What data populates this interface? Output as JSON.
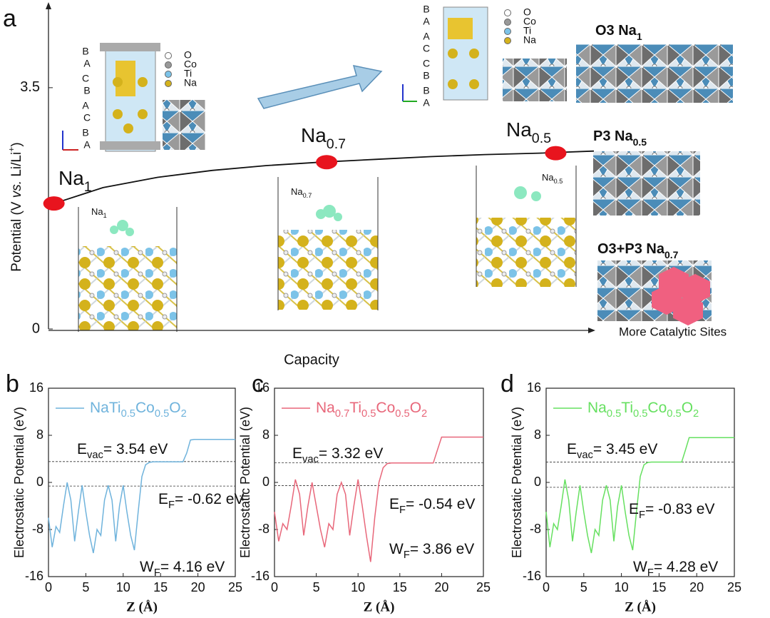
{
  "panel_labels": [
    "a",
    "b",
    "c",
    "d"
  ],
  "atom_legend": [
    "O",
    "Co",
    "Ti",
    "Na"
  ],
  "stacking_left": [
    "B",
    "A",
    "C",
    "B",
    "A",
    "C",
    "B",
    "A"
  ],
  "stacking_right": [
    "B",
    "A",
    "A",
    "C",
    "C",
    "B",
    "B",
    "A"
  ],
  "slab_labels": [
    "Na1",
    "Na0.7",
    "Na0.5"
  ],
  "structures": [
    {
      "prefix": "O3 Na",
      "sub": "1"
    },
    {
      "prefix": "P3 Na",
      "sub": "0.5"
    },
    {
      "prefix": "O3+P3 Na",
      "sub": "0.7"
    }
  ],
  "structure_note": "More Catalytic Sites",
  "chart_data": [
    {
      "type": "line",
      "xlabel": "Capacity",
      "ylabel": [
        "Potential (V ",
        "vs.",
        " Li/Li",
        "+",
        ")"
      ],
      "xlim": [
        0,
        1
      ],
      "ylim": [
        0,
        4.72
      ],
      "yticks": [
        0,
        3.5
      ],
      "color": "#111111",
      "x": [
        0.01,
        0.1,
        0.2,
        0.3,
        0.4,
        0.5,
        0.6,
        0.7,
        0.8,
        0.9,
        1.0
      ],
      "values": [
        1.82,
        2.05,
        2.2,
        2.3,
        2.37,
        2.42,
        2.46,
        2.5,
        2.53,
        2.55,
        2.58
      ],
      "points": {
        "labels": [
          "Na1",
          "Na0.7",
          "Na0.5"
        ],
        "x": [
          0.01,
          0.51,
          0.93
        ],
        "values": [
          1.82,
          2.42,
          2.55
        ],
        "color": "#e8141e"
      }
    },
    {
      "type": "line",
      "xlabel": "Z (Å)",
      "ylabel": "Electrostatic Potential (eV)",
      "xlim": [
        0,
        25
      ],
      "ylim": [
        -16,
        16
      ],
      "xticks": [
        0,
        5,
        10,
        15,
        20,
        25
      ],
      "yticks": [
        -16,
        -8,
        0,
        8,
        16
      ],
      "x": [
        0,
        0.5,
        1,
        1.5,
        2,
        2.5,
        3,
        3.5,
        4,
        4.5,
        5,
        5.5,
        6,
        6.5,
        7,
        7.5,
        8,
        8.5,
        9,
        9.5,
        10,
        10.5,
        11,
        11.5,
        12,
        12.5,
        13,
        13.5,
        14,
        14.5,
        15,
        15.5,
        16,
        16.5,
        17,
        17.5,
        18,
        18.5,
        19,
        19.5,
        20,
        20.5,
        21,
        21.5,
        22,
        22.5,
        23,
        23.5,
        24,
        24.5,
        25
      ],
      "series": [
        {
          "name": "NaTi0.5Co0.5O2",
          "color": "#6fb3dc",
          "values": [
            -6,
            -11,
            -7.5,
            -8.5,
            -4,
            0,
            -3,
            -10,
            -5,
            -0.5,
            -5,
            -9,
            -12,
            -8,
            -9,
            -3,
            -0.5,
            -3,
            -10,
            -4,
            -0.5,
            -5,
            -9,
            -11.5,
            -5,
            1,
            3,
            3.4,
            3.5,
            3.5,
            3.5,
            3.5,
            3.5,
            3.5,
            3.5,
            3.5,
            3.5,
            5,
            7.2,
            7.3,
            7.3,
            7.3,
            7.3,
            7.3,
            7.3,
            7.3,
            7.3,
            7.3,
            7.3,
            7.3,
            7.3
          ]
        }
      ],
      "levels": [
        3.54,
        -0.62
      ],
      "annotations": [
        {
          "symbol": "E",
          "sub": "vac",
          "after": "= 3.54 eV"
        },
        {
          "symbol": "E",
          "sub": "F",
          "after": "= -0.62 eV"
        },
        {
          "symbol": "W",
          "sub": "F",
          "after": "= 4.16 eV"
        }
      ]
    },
    {
      "type": "line",
      "xlabel": "Z (Å)",
      "ylabel": "Electrostatic Potential (eV)",
      "xlim": [
        0,
        25
      ],
      "ylim": [
        -16,
        16
      ],
      "xticks": [
        0,
        5,
        10,
        15,
        20,
        25
      ],
      "yticks": [
        -16,
        -8,
        0,
        8,
        16
      ],
      "x": [
        0,
        0.5,
        1,
        1.5,
        2,
        2.5,
        3,
        3.5,
        4,
        4.5,
        5,
        5.5,
        6,
        6.5,
        7,
        7.5,
        8,
        8.5,
        9,
        9.5,
        10,
        10.5,
        11,
        11.5,
        12,
        12.5,
        13,
        13.5,
        14,
        14.5,
        15,
        15.5,
        16,
        16.5,
        17,
        17.5,
        18,
        18.5,
        19,
        19.5,
        20,
        20.5,
        21,
        21.5,
        22,
        22.5,
        23,
        23.5,
        24,
        24.5,
        25
      ],
      "series": [
        {
          "name": "Na0.7Ti0.5Co0.5O2",
          "color": "#e8677a",
          "values": [
            -5,
            -10,
            -7,
            -8,
            -4,
            0.5,
            -2,
            -9,
            -4,
            0,
            -4,
            -8,
            -11,
            -7,
            -8,
            -2,
            0,
            -2,
            -9,
            -4,
            0.5,
            -4,
            -9,
            -13.5,
            -6,
            0,
            2.5,
            3.2,
            3.3,
            3.3,
            3.3,
            3.3,
            3.3,
            3.3,
            3.3,
            3.3,
            3.3,
            3.3,
            3.3,
            5.5,
            7.7,
            7.7,
            7.7,
            7.7,
            7.7,
            7.7,
            7.7,
            7.7,
            7.7,
            7.7,
            7.7
          ]
        }
      ],
      "levels": [
        3.32,
        -0.54
      ],
      "annotations": [
        {
          "symbol": "E",
          "sub": "vac",
          "after": "= 3.32 eV"
        },
        {
          "symbol": "E",
          "sub": "F",
          "after": "= -0.54 eV"
        },
        {
          "symbol": "W",
          "sub": "F",
          "after": "= 3.86 eV"
        }
      ]
    },
    {
      "type": "line",
      "xlabel": "Z (Å)",
      "ylabel": "Electrostatic Potential (eV)",
      "xlim": [
        0,
        25
      ],
      "ylim": [
        -16,
        16
      ],
      "xticks": [
        0,
        5,
        10,
        15,
        20,
        25
      ],
      "yticks": [
        -16,
        -8,
        0,
        8,
        16
      ],
      "x": [
        0,
        0.5,
        1,
        1.5,
        2,
        2.5,
        3,
        3.5,
        4,
        4.5,
        5,
        5.5,
        6,
        6.5,
        7,
        7.5,
        8,
        8.5,
        9,
        9.5,
        10,
        10.5,
        11,
        11.5,
        12,
        12.5,
        13,
        13.5,
        14,
        14.5,
        15,
        15.5,
        16,
        16.5,
        17,
        17.5,
        18,
        18.5,
        19,
        19.5,
        20,
        20.5,
        21,
        21.5,
        22,
        22.5,
        23,
        23.5,
        24,
        24.5,
        25
      ],
      "series": [
        {
          "name": "Na0.5Ti0.5Co0.5O2",
          "color": "#66e060",
          "values": [
            -5,
            -11,
            -7,
            -8,
            -4,
            0.5,
            -3,
            -10,
            -5,
            -0.5,
            -5,
            -9,
            -12,
            -8,
            -9,
            -3,
            -0.5,
            -3,
            -10,
            -4,
            -0.5,
            -5,
            -9,
            -11.5,
            -5,
            1,
            3,
            3.4,
            3.45,
            3.45,
            3.45,
            3.45,
            3.45,
            3.45,
            3.45,
            3.45,
            3.45,
            5.5,
            7.6,
            7.6,
            7.6,
            7.6,
            7.6,
            7.6,
            7.6,
            7.6,
            7.6,
            7.6,
            7.6,
            7.6,
            7.6
          ]
        }
      ],
      "levels": [
        3.45,
        -0.83
      ],
      "annotations": [
        {
          "symbol": "E",
          "sub": "vac",
          "after": "= 3.45 eV"
        },
        {
          "symbol": "E",
          "sub": "F",
          "after": "= -0.83 eV"
        },
        {
          "symbol": "W",
          "sub": "F",
          "after": "= 4.28 eV"
        }
      ]
    }
  ]
}
